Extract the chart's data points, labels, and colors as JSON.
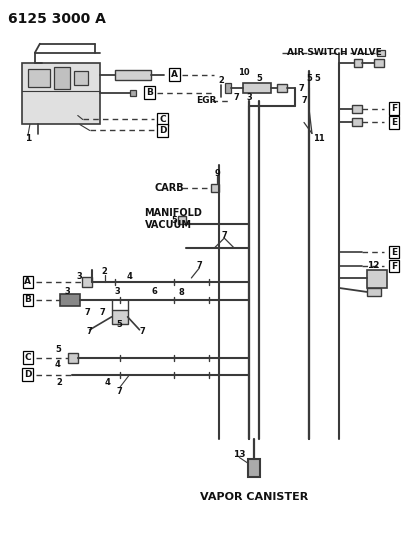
{
  "title": "6125 3000 A",
  "bg_color": "#ffffff",
  "lc": "#3a3a3a",
  "tc": "#111111",
  "figsize": [
    4.08,
    5.33
  ],
  "dpi": 100,
  "labels": {
    "air_switch_valve": "AIR SWITCH VALVE",
    "egr": "EGR",
    "carb": "CARB",
    "manifold_vacuum": "MANIFOLD\nVACUUM",
    "vapor_canister": "VAPOR CANISTER"
  }
}
